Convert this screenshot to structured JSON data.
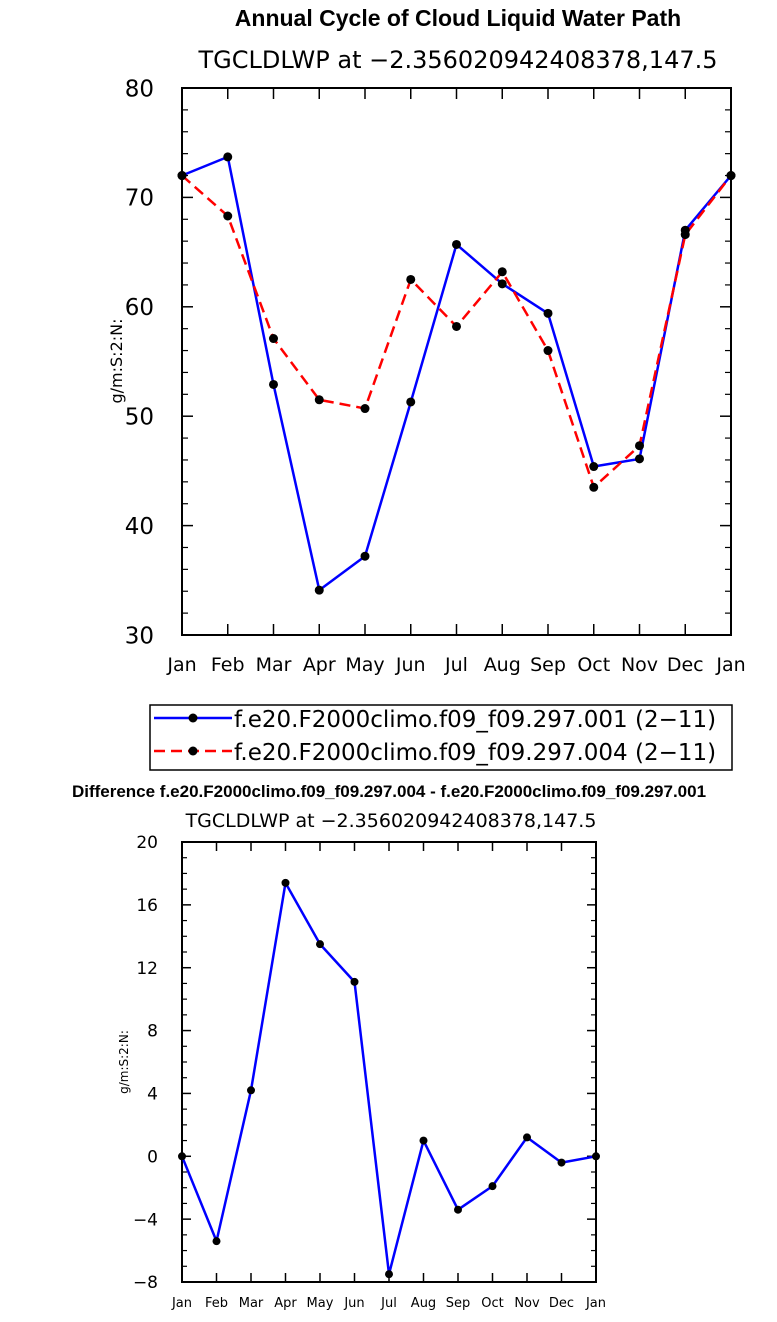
{
  "chart_data": [
    {
      "type": "line",
      "title": "Annual Cycle of Cloud Liquid Water Path",
      "subtitle": "TGCLDLWP at −2.356020942408378,147.5",
      "xlabel": "",
      "ylabel": "g/m:S:2:N:",
      "ylim": [
        30,
        80
      ],
      "yticks": [
        "30",
        "40",
        "50",
        "60",
        "70",
        "80"
      ],
      "categories": [
        "Jan",
        "Feb",
        "Mar",
        "Apr",
        "May",
        "Jun",
        "Jul",
        "Aug",
        "Sep",
        "Oct",
        "Nov",
        "Dec",
        "Jan"
      ],
      "legend_position": "bottom-center",
      "series": [
        {
          "name": "f.e20.F2000climo.f09_f09.297.001 (2−11)",
          "color": "#0000ff",
          "style": "solid",
          "values": [
            72.0,
            73.7,
            52.9,
            34.1,
            37.2,
            51.3,
            65.7,
            62.1,
            59.4,
            45.4,
            46.1,
            67.0,
            72.0
          ]
        },
        {
          "name": "f.e20.F2000climo.f09_f09.297.004 (2−11)",
          "color": "#ff0000",
          "style": "dashed",
          "values": [
            72.0,
            68.3,
            57.1,
            51.5,
            50.7,
            62.5,
            58.2,
            63.2,
            56.0,
            43.5,
            47.3,
            66.6,
            72.0
          ]
        }
      ]
    },
    {
      "type": "line",
      "title": "Difference f.e20.F2000climo.f09_f09.297.004 - f.e20.F2000climo.f09_f09.297.001",
      "subtitle": "TGCLDLWP at −2.356020942408378,147.5",
      "xlabel": "",
      "ylabel": "g/m:S:2:N:",
      "ylim": [
        -8,
        20
      ],
      "yticks": [
        "−8",
        "−4",
        "0",
        "4",
        "8",
        "12",
        "16",
        "20"
      ],
      "categories": [
        "Jan",
        "Feb",
        "Mar",
        "Apr",
        "May",
        "Jun",
        "Jul",
        "Aug",
        "Sep",
        "Oct",
        "Nov",
        "Dec",
        "Jan"
      ],
      "series": [
        {
          "name": "difference",
          "color": "#0000ff",
          "style": "solid",
          "values": [
            0.0,
            -5.4,
            4.2,
            17.4,
            13.5,
            11.1,
            -7.5,
            1.0,
            -3.4,
            -1.9,
            1.2,
            -0.4,
            0.0
          ]
        }
      ]
    }
  ]
}
